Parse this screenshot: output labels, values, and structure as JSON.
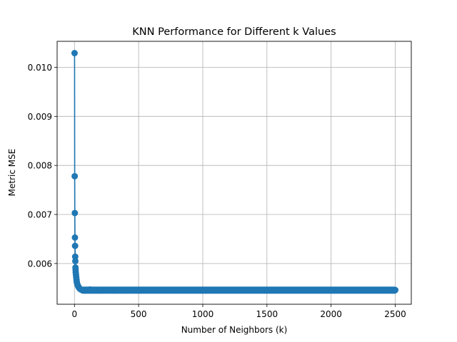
{
  "chart_data": {
    "type": "line",
    "title": "KNN Performance for Different k Values",
    "xlabel": "Number of Neighbors (k)",
    "ylabel": "Metric MSE",
    "xlim": [
      -135,
      2625
    ],
    "ylim": [
      0.00517,
      0.01053
    ],
    "x_ticks": [
      0,
      500,
      1000,
      1500,
      2000,
      2500
    ],
    "x_tick_labels": [
      "0",
      "500",
      "1000",
      "1500",
      "2000",
      "2500"
    ],
    "y_ticks": [
      0.006,
      0.007,
      0.008,
      0.009,
      0.01
    ],
    "y_tick_labels": [
      "0.006",
      "0.007",
      "0.008",
      "0.009",
      "0.010"
    ],
    "grid": true,
    "marker": "circle",
    "series": [
      {
        "color": "#1f77b4",
        "points": [
          [
            1,
            0.01029
          ],
          [
            2,
            0.00778
          ],
          [
            3,
            0.00703
          ],
          [
            4,
            0.00653
          ],
          [
            5,
            0.00636
          ],
          [
            6,
            0.00614
          ],
          [
            7,
            0.00605
          ],
          [
            8,
            0.00592
          ],
          [
            9,
            0.00587
          ],
          [
            10,
            0.00582
          ],
          [
            12,
            0.00577
          ],
          [
            14,
            0.00572
          ],
          [
            16,
            0.00567
          ],
          [
            18,
            0.00563
          ],
          [
            20,
            0.0056
          ],
          [
            25,
            0.00556
          ],
          [
            30,
            0.00553
          ],
          [
            35,
            0.00551
          ],
          [
            40,
            0.00549
          ],
          [
            50,
            0.00547
          ],
          [
            60,
            0.00546
          ],
          [
            80,
            0.00545
          ],
          [
            100,
            0.00546
          ],
          [
            120,
            0.00547
          ],
          [
            150,
            0.00545
          ],
          [
            200,
            0.00545
          ],
          [
            300,
            0.00545
          ],
          [
            400,
            0.00545
          ],
          [
            500,
            0.00546
          ],
          [
            700,
            0.00546
          ],
          [
            1000,
            0.00546
          ],
          [
            1300,
            0.00546
          ],
          [
            1600,
            0.00546
          ],
          [
            1900,
            0.00546
          ],
          [
            2200,
            0.00546
          ],
          [
            2500,
            0.00546
          ]
        ]
      }
    ]
  }
}
